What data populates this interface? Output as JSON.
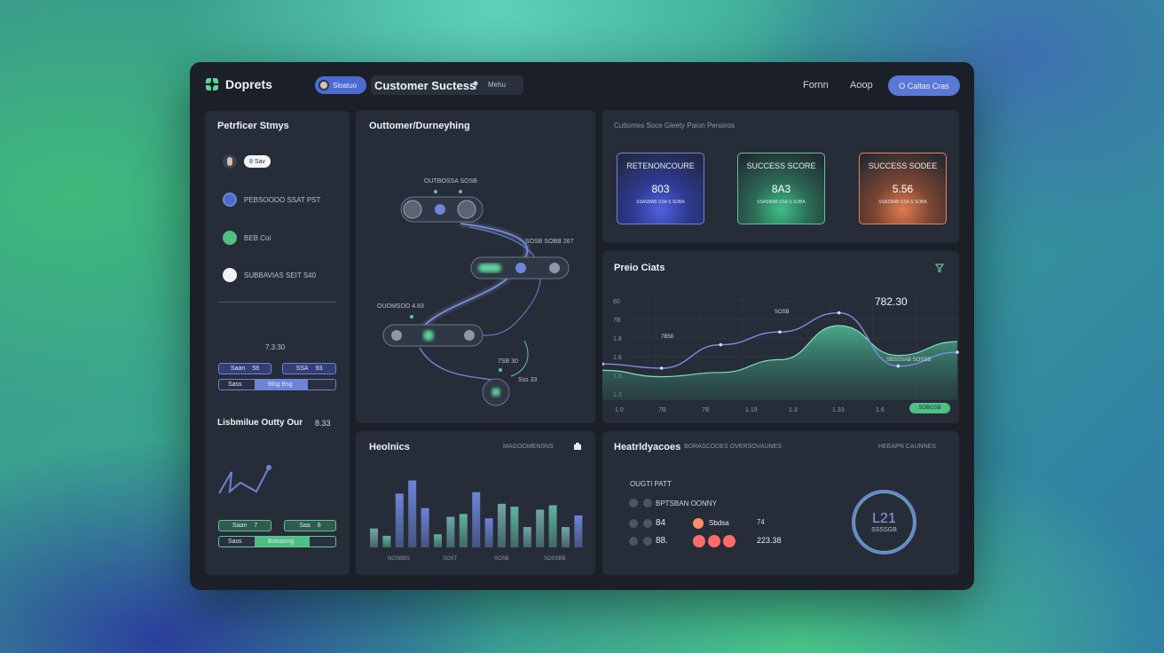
{
  "header": {
    "brand": "Doprets",
    "tab_pill_label": "Sloatuo",
    "page_title": "Customer Suctess",
    "page_title_sub": "Mehu",
    "nav": [
      "Fornn",
      "Aoop"
    ],
    "cta_label": "O Caltas Cras"
  },
  "left_panel": {
    "title": "Petrficer Stmys",
    "people": [
      {
        "chip": "8 Sav",
        "text": ""
      },
      {
        "chip": "",
        "text": "PEBSOOOO   SSAT PST"
      },
      {
        "chip": "",
        "text": "BEB Coi"
      },
      {
        "chip": "",
        "text": "SUBBAVIAS    SEIT S40"
      }
    ],
    "value_label": "7.3:30",
    "buttons_top": [
      {
        "label": "Saan",
        "val": "58"
      },
      {
        "label": "SSA",
        "val": "93"
      }
    ],
    "bar_top": {
      "label": "Sass",
      "value_label": "Blsg Bsg",
      "fill": 0.45
    },
    "section_title": "Lisbmilue Outty Our",
    "section_value": "8.33",
    "buttons_bottom": [
      {
        "label": "Saan",
        "val": "7"
      },
      {
        "label": "Saa",
        "val": "8"
      }
    ],
    "bar_bottom": {
      "label": "Sass",
      "value_label": "Bstsanng",
      "fill": 0.45
    }
  },
  "journey": {
    "title": "Outtomer/Durneyhing",
    "labels": [
      "OUTBOSSA SOSB",
      "SOSB SOBB 267",
      "OUOMSOO 4.83",
      "7SB 30",
      "Sss 33"
    ]
  },
  "scores": {
    "header": "Cuttomes Soce Gleety Paion Pensiros",
    "cards": [
      {
        "label": "RETENONCOURE",
        "value": "803",
        "sub": "SSASBAB SSA S SOBA",
        "color": "#4f62e0"
      },
      {
        "label": "SUCCESS SCORE",
        "value": "8A3",
        "sub": "SSASBAB SSA S SOBA",
        "color": "#3fbf86"
      },
      {
        "label": "SUCCESS SODEE",
        "value": "5.56",
        "sub": "SSASBAB SSA S SOBA",
        "color": "#e27b4e"
      }
    ]
  },
  "price_chart": {
    "title": "Preio Ciats",
    "peak_label": "782.30",
    "annot": [
      "7B58",
      "SOSB",
      "SBSSSAB SOSSB"
    ],
    "yticks": [
      "60",
      "7B",
      "1.8",
      "1.6",
      "1.8",
      "1.3"
    ],
    "xticks": [
      "1.0",
      "7B",
      "7B",
      "1.19",
      "1.3",
      "1.33",
      "1.6"
    ],
    "badge": "SOBGSB"
  },
  "chart_data": {
    "type": "area",
    "title": "Preio Ciats",
    "x": [
      "1.0",
      "7B",
      "7B",
      "1.19",
      "1.3",
      "1.33",
      "1.6"
    ],
    "series": [
      {
        "values": [
          0.28,
          0.22,
          0.26,
          0.38,
          0.7,
          0.42,
          0.55
        ]
      },
      {
        "values": [
          0.34,
          0.3,
          0.52,
          0.64,
          0.82,
          0.32,
          0.45
        ]
      }
    ]
  },
  "heatmap": {
    "title": "Heolnics",
    "legend": "MAGOOMENSNS",
    "bars": [
      {
        "v": 0.26,
        "c": "#6ea6a6"
      },
      {
        "v": 0.16,
        "c": "#5fb49e"
      },
      {
        "v": 0.74,
        "c": "#6d84d8"
      },
      {
        "v": 0.92,
        "c": "#6d84d8"
      },
      {
        "v": 0.54,
        "c": "#6d84d8"
      },
      {
        "v": 0.18,
        "c": "#5fb49e"
      },
      {
        "v": 0.42,
        "c": "#6ea6a6"
      },
      {
        "v": 0.46,
        "c": "#5fb49e"
      },
      {
        "v": 0.76,
        "c": "#6d84d8"
      },
      {
        "v": 0.4,
        "c": "#6d84d8"
      },
      {
        "v": 0.6,
        "c": "#6ea6a6"
      },
      {
        "v": 0.56,
        "c": "#5fb49e"
      },
      {
        "v": 0.28,
        "c": "#6ea6a6"
      },
      {
        "v": 0.52,
        "c": "#6ea6a6"
      },
      {
        "v": 0.58,
        "c": "#5fb49e"
      },
      {
        "v": 0.28,
        "c": "#6ea6a6"
      },
      {
        "v": 0.44,
        "c": "#6d84d8"
      }
    ],
    "xlabels": [
      "NOSBBS",
      "SOST",
      "SOSB",
      "SOSSBB"
    ]
  },
  "health": {
    "title": "Heatrldyacoes",
    "subtitle": "BORASCOOES OVERSOVAUNES",
    "right_label": "HEEAPN CAUNNES",
    "heading": "OUGTI PATT",
    "row1_text": "BPTSBAN OONNY",
    "row2_num": "84",
    "row2_text": "Sbdsa",
    "row2_right": "74",
    "row3_num": "88.",
    "row3_right": "223.38",
    "gauge_value": "L21",
    "gauge_label": "SSSSGB"
  }
}
